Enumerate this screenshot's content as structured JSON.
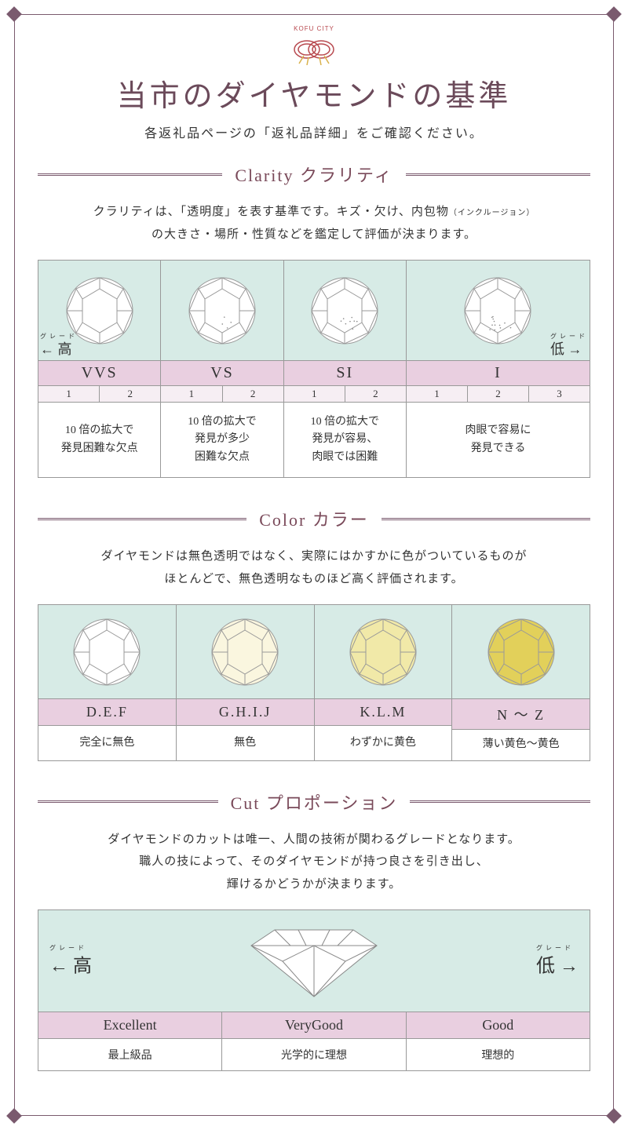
{
  "logo": {
    "city": "KOFU CITY"
  },
  "title": "当市のダイヤモンドの基準",
  "subtitle": "各返礼品ページの「返礼品詳細」をご確認ください。",
  "clarity": {
    "header": "Clarity クラリティ",
    "desc_l1": "クラリティは、「透明度」を表す基準です。キズ・欠け、内包物",
    "desc_small": "（インクルージョン）",
    "desc_l2": "の大きさ・場所・性質などを鑑定して評価が決まります。",
    "high": "← 高",
    "low": "低 →",
    "ruby": "グレード",
    "cols": [
      {
        "grade": "VVS",
        "subs": [
          "1",
          "2"
        ],
        "desc": "10 倍の拡大で\n発見困難な欠点"
      },
      {
        "grade": "VS",
        "subs": [
          "1",
          "2"
        ],
        "desc": "10 倍の拡大で\n発見が多少\n困難な欠点"
      },
      {
        "grade": "SI",
        "subs": [
          "1",
          "2"
        ],
        "desc": "10 倍の拡大で\n発見が容易、\n肉眼では困難"
      },
      {
        "grade": "I",
        "subs": [
          "1",
          "2",
          "3"
        ],
        "desc": "肉眼で容易に\n発見できる"
      }
    ]
  },
  "color": {
    "header": "Color カラー",
    "desc_l1": "ダイヤモンドは無色透明ではなく、実際にはかすかに色がついているものが",
    "desc_l2": "ほとんどで、無色透明なものほど高く評価されます。",
    "cols": [
      {
        "grade": "D.E.F",
        "desc": "完全に無色",
        "fill": "#ffffff"
      },
      {
        "grade": "G.H.I.J",
        "desc": "無色",
        "fill": "#faf6df"
      },
      {
        "grade": "K.L.M",
        "desc": "わずかに黄色",
        "fill": "#f1e9a8"
      },
      {
        "grade": "N ～ Z",
        "desc": "薄い黄色～黄色",
        "fill": "#e2d05a"
      }
    ]
  },
  "cut": {
    "header": "Cut プロポーション",
    "desc_l1": "ダイヤモンドのカットは唯一、人間の技術が関わるグレードとなります。",
    "desc_l2": "職人の技によって、そのダイヤモンドが持つ良さを引き出し、",
    "desc_l3": "輝けるかどうかが決まります。",
    "high": "← 高",
    "low": "低 →",
    "ruby": "グレード",
    "cols": [
      {
        "grade": "Excellent",
        "desc": "最上級品"
      },
      {
        "grade": "VeryGood",
        "desc": "光学的に理想"
      },
      {
        "grade": "Good",
        "desc": "理想的"
      }
    ]
  },
  "colors": {
    "frame": "#7a5a6e",
    "title": "#6b4a5a",
    "header_bg": "#e9cfe0",
    "diamond_bg": "#d7ebe6",
    "sub_bg": "#f6eef3",
    "border": "#999999"
  }
}
